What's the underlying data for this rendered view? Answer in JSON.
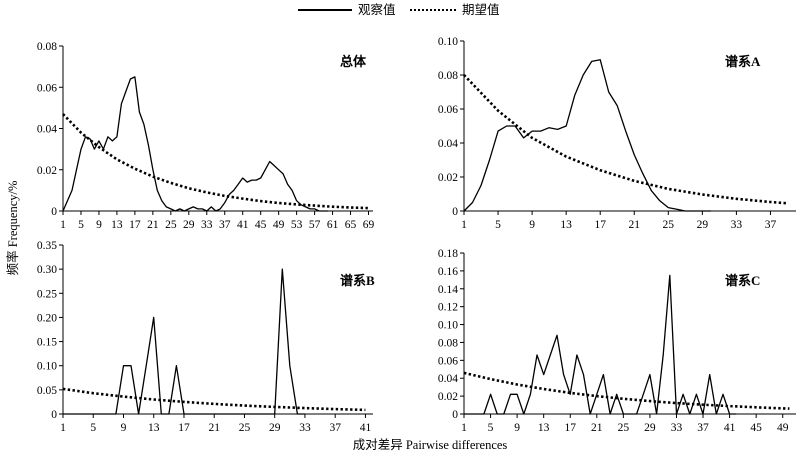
{
  "legend": {
    "observed_label": "观察值",
    "expected_label": "期望值"
  },
  "axis_titles": {
    "y": "频率 Frequency/%",
    "x": "成对差异 Pairwise differences"
  },
  "chart_data": [
    {
      "type": "line",
      "title": "总体",
      "ylim": [
        0,
        0.08
      ],
      "yticks": [
        0,
        0.02,
        0.04,
        0.06,
        0.08
      ],
      "ytick_labels": [
        "0",
        "0.02",
        "0.04",
        "0.06",
        "0.08"
      ],
      "xlim": [
        1,
        70
      ],
      "xticks": [
        1,
        5,
        9,
        13,
        17,
        21,
        25,
        29,
        33,
        37,
        41,
        45,
        49,
        53,
        57,
        61,
        65,
        69
      ],
      "series": [
        {
          "name": "观察值",
          "style": "solid",
          "x": [
            1,
            3,
            5,
            6,
            7,
            8,
            9,
            10,
            11,
            12,
            13,
            14,
            15,
            16,
            17,
            18,
            19,
            20,
            21,
            22,
            23,
            24,
            25,
            26,
            27,
            28,
            29,
            30,
            31,
            32,
            33,
            34,
            35,
            36,
            37,
            38,
            39,
            40,
            41,
            42,
            43,
            44,
            45,
            46,
            47,
            48,
            49,
            50,
            51,
            52,
            53,
            54,
            55,
            56,
            57,
            58,
            60
          ],
          "y": [
            0,
            0.01,
            0.03,
            0.036,
            0.035,
            0.03,
            0.034,
            0.03,
            0.036,
            0.034,
            0.036,
            0.052,
            0.058,
            0.064,
            0.065,
            0.048,
            0.042,
            0.032,
            0.02,
            0.01,
            0.005,
            0.002,
            0.001,
            0,
            0.001,
            0,
            0.001,
            0.002,
            0.001,
            0.001,
            0,
            0.002,
            0,
            0.001,
            0.004,
            0.008,
            0.01,
            0.013,
            0.016,
            0.014,
            0.015,
            0.015,
            0.016,
            0.02,
            0.024,
            0.022,
            0.02,
            0.018,
            0.013,
            0.01,
            0.005,
            0.003,
            0.002,
            0.001,
            0.001,
            0,
            0
          ]
        },
        {
          "name": "期望值",
          "style": "dotted",
          "x": [
            1,
            5,
            9,
            13,
            17,
            21,
            25,
            29,
            33,
            37,
            41,
            45,
            49,
            53,
            57,
            61,
            65,
            69
          ],
          "y": [
            0.047,
            0.038,
            0.031,
            0.025,
            0.0205,
            0.0167,
            0.0136,
            0.011,
            0.009,
            0.0073,
            0.006,
            0.0048,
            0.0039,
            0.0032,
            0.0026,
            0.0021,
            0.0017,
            0.0014
          ]
        }
      ]
    },
    {
      "type": "line",
      "title": "谱系A",
      "ylim": [
        0,
        0.1
      ],
      "yticks": [
        0,
        0.02,
        0.04,
        0.06,
        0.08,
        0.1
      ],
      "ytick_labels": [
        "0",
        "0.02",
        "0.04",
        "0.06",
        "0.08",
        "0.10"
      ],
      "xlim": [
        1,
        40
      ],
      "xticks": [
        1,
        5,
        9,
        13,
        17,
        21,
        25,
        29,
        33,
        37
      ],
      "series": [
        {
          "name": "观察值",
          "style": "solid",
          "x": [
            1,
            2,
            3,
            4,
            5,
            6,
            7,
            8,
            9,
            10,
            11,
            12,
            13,
            14,
            15,
            16,
            17,
            18,
            19,
            20,
            21,
            22,
            23,
            24,
            25,
            26,
            27,
            28,
            29,
            30
          ],
          "y": [
            0,
            0.005,
            0.015,
            0.03,
            0.047,
            0.05,
            0.05,
            0.043,
            0.047,
            0.047,
            0.049,
            0.048,
            0.05,
            0.068,
            0.08,
            0.088,
            0.089,
            0.07,
            0.062,
            0.047,
            0.033,
            0.022,
            0.012,
            0.006,
            0.002,
            0.001,
            0,
            0,
            0,
            0
          ]
        },
        {
          "name": "期望值",
          "style": "dotted",
          "x": [
            1,
            5,
            9,
            13,
            17,
            21,
            25,
            29,
            33,
            37,
            39
          ],
          "y": [
            0.08,
            0.059,
            0.043,
            0.032,
            0.024,
            0.0177,
            0.013,
            0.0097,
            0.0072,
            0.0053,
            0.0045
          ]
        }
      ]
    },
    {
      "type": "line",
      "title": "谱系B",
      "ylim": [
        0,
        0.35
      ],
      "yticks": [
        0,
        0.05,
        0.1,
        0.15,
        0.2,
        0.25,
        0.3,
        0.35
      ],
      "ytick_labels": [
        "0",
        "0.05",
        "0.10",
        "0.15",
        "0.20",
        "0.25",
        "0.30",
        "0.35"
      ],
      "xlim": [
        1,
        42
      ],
      "xticks": [
        1,
        5,
        9,
        13,
        17,
        21,
        25,
        29,
        33,
        37,
        41
      ],
      "series": [
        {
          "name": "观察值",
          "style": "solid",
          "x": [
            1,
            8,
            9,
            10,
            11,
            12,
            13,
            14,
            15,
            16,
            17,
            18,
            19,
            28,
            29,
            30,
            31,
            32,
            33
          ],
          "y": [
            0,
            0,
            0.1,
            0.1,
            0,
            0.1,
            0.2,
            0,
            0,
            0.1,
            0,
            0,
            0,
            0,
            0,
            0.3,
            0.1,
            0,
            0
          ]
        },
        {
          "name": "期望值",
          "style": "dotted",
          "x": [
            1,
            5,
            9,
            13,
            17,
            21,
            25,
            29,
            33,
            37,
            41
          ],
          "y": [
            0.052,
            0.043,
            0.036,
            0.03,
            0.025,
            0.021,
            0.0175,
            0.0147,
            0.0122,
            0.0102,
            0.0085
          ]
        }
      ]
    },
    {
      "type": "line",
      "title": "谱系C",
      "ylim": [
        0,
        0.18
      ],
      "yticks": [
        0,
        0.02,
        0.04,
        0.06,
        0.08,
        0.1,
        0.12,
        0.14,
        0.16,
        0.18
      ],
      "ytick_labels": [
        "0",
        "0.02",
        "0.04",
        "0.06",
        "0.08",
        "0.10",
        "0.12",
        "0.14",
        "0.16",
        "0.18"
      ],
      "xlim": [
        1,
        51
      ],
      "xticks": [
        1,
        5,
        9,
        13,
        17,
        21,
        25,
        29,
        33,
        37,
        41,
        45,
        49
      ],
      "series": [
        {
          "name": "观察值",
          "style": "solid",
          "x": [
            1,
            4,
            5,
            6,
            7,
            8,
            9,
            10,
            11,
            12,
            13,
            14,
            15,
            16,
            17,
            18,
            19,
            20,
            21,
            22,
            23,
            24,
            25,
            26,
            27,
            28,
            29,
            30,
            31,
            32,
            33,
            34,
            35,
            36,
            37,
            38,
            39,
            40,
            41,
            42
          ],
          "y": [
            0,
            0,
            0.022,
            0,
            0,
            0.022,
            0.022,
            0,
            0.022,
            0.066,
            0.044,
            0.066,
            0.088,
            0.044,
            0.022,
            0.066,
            0.044,
            0,
            0.022,
            0.044,
            0,
            0.022,
            0,
            0,
            0,
            0.022,
            0.044,
            0,
            0.066,
            0.155,
            0,
            0.022,
            0,
            0.022,
            0,
            0.044,
            0,
            0.022,
            0,
            0
          ]
        },
        {
          "name": "期望值",
          "style": "dotted",
          "x": [
            1,
            5,
            9,
            13,
            17,
            21,
            25,
            29,
            33,
            37,
            41,
            45,
            49,
            50
          ],
          "y": [
            0.046,
            0.039,
            0.033,
            0.028,
            0.0236,
            0.02,
            0.017,
            0.0144,
            0.0122,
            0.0104,
            0.0088,
            0.0075,
            0.0063,
            0.006
          ]
        }
      ]
    }
  ]
}
